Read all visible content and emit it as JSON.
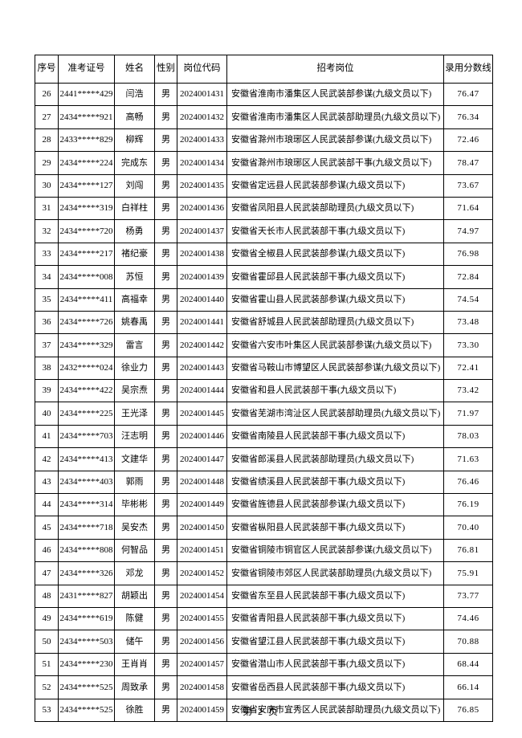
{
  "table": {
    "headers": [
      "序号",
      "准考证号",
      "姓名",
      "性别",
      "岗位代码",
      "招考岗位",
      "录用分数线"
    ],
    "rows": [
      [
        "26",
        "2441*****429",
        "闫浩",
        "男",
        "2024001431",
        "安徽省淮南市潘集区人民武装部参谋(九级文员以下)",
        "76.47"
      ],
      [
        "27",
        "2434*****921",
        "高畅",
        "男",
        "2024001432",
        "安徽省淮南市潘集区人民武装部助理员(九级文员以下)",
        "76.34"
      ],
      [
        "28",
        "2433*****829",
        "柳辉",
        "男",
        "2024001433",
        "安徽省滁州市琅琊区人民武装部参谋(九级文员以下)",
        "72.46"
      ],
      [
        "29",
        "2434*****224",
        "完成东",
        "男",
        "2024001434",
        "安徽省滁州市琅琊区人民武装部干事(九级文员以下)",
        "78.47"
      ],
      [
        "30",
        "2434*****127",
        "刘闯",
        "男",
        "2024001435",
        "安徽省定远县人民武装部参谋(九级文员以下)",
        "73.67"
      ],
      [
        "31",
        "2434*****319",
        "白祥柱",
        "男",
        "2024001436",
        "安徽省凤阳县人民武装部助理员(九级文员以下)",
        "71.64"
      ],
      [
        "32",
        "2434*****720",
        "杨勇",
        "男",
        "2024001437",
        "安徽省天长市人民武装部干事(九级文员以下)",
        "74.97"
      ],
      [
        "33",
        "2434*****217",
        "褚纪豪",
        "男",
        "2024001438",
        "安徽省全椒县人民武装部参谋(九级文员以下)",
        "76.98"
      ],
      [
        "34",
        "2434*****008",
        "苏恒",
        "男",
        "2024001439",
        "安徽省霍邱县人民武装部干事(九级文员以下)",
        "72.84"
      ],
      [
        "35",
        "2434*****411",
        "高福幸",
        "男",
        "2024001440",
        "安徽省霍山县人民武装部参谋(九级文员以下)",
        "74.54"
      ],
      [
        "36",
        "2434*****726",
        "姚春禹",
        "男",
        "2024001441",
        "安徽省舒城县人民武装部助理员(九级文员以下)",
        "73.48"
      ],
      [
        "37",
        "2434*****329",
        "雷言",
        "男",
        "2024001442",
        "安徽省六安市叶集区人民武装部参谋(九级文员以下)",
        "73.30"
      ],
      [
        "38",
        "2432*****024",
        "徐业力",
        "男",
        "2024001443",
        "安徽省马鞍山市博望区人民武装部参谋(九级文员以下)",
        "72.41"
      ],
      [
        "39",
        "2434*****422",
        "吴宗焘",
        "男",
        "2024001444",
        "安徽省和县人民武装部干事(九级文员以下)",
        "73.42"
      ],
      [
        "40",
        "2434*****225",
        "王光泽",
        "男",
        "2024001445",
        "安徽省芜湖市湾沚区人民武装部助理员(九级文员以下)",
        "71.97"
      ],
      [
        "41",
        "2434*****703",
        "汪志明",
        "男",
        "2024001446",
        "安徽省南陵县人民武装部干事(九级文员以下)",
        "78.03"
      ],
      [
        "42",
        "2434*****413",
        "文建华",
        "男",
        "2024001447",
        "安徽省郎溪县人民武装部助理员(九级文员以下)",
        "71.63"
      ],
      [
        "43",
        "2434*****403",
        "郭雨",
        "男",
        "2024001448",
        "安徽省绩溪县人民武装部干事(九级文员以下)",
        "76.46"
      ],
      [
        "44",
        "2434*****314",
        "毕彬彬",
        "男",
        "2024001449",
        "安徽省旌德县人民武装部参谋(九级文员以下)",
        "76.19"
      ],
      [
        "45",
        "2434*****718",
        "吴安杰",
        "男",
        "2024001450",
        "安徽省枞阳县人民武装部干事(九级文员以下)",
        "70.40"
      ],
      [
        "46",
        "2434*****808",
        "何智品",
        "男",
        "2024001451",
        "安徽省铜陵市铜官区人民武装部参谋(九级文员以下)",
        "76.81"
      ],
      [
        "47",
        "2434*****326",
        "邓龙",
        "男",
        "2024001452",
        "安徽省铜陵市郊区人民武装部助理员(九级文员以下)",
        "75.91"
      ],
      [
        "48",
        "2431*****827",
        "胡颖出",
        "男",
        "2024001454",
        "安徽省东至县人民武装部干事(九级文员以下)",
        "73.77"
      ],
      [
        "49",
        "2434*****619",
        "陈健",
        "男",
        "2024001455",
        "安徽省青阳县人民武装部干事(九级文员以下)",
        "74.46"
      ],
      [
        "50",
        "2434*****503",
        "储午",
        "男",
        "2024001456",
        "安徽省望江县人民武装部干事(九级文员以下)",
        "70.88"
      ],
      [
        "51",
        "2434*****230",
        "王肖肖",
        "男",
        "2024001457",
        "安徽省潜山市人民武装部干事(九级文员以下)",
        "68.44"
      ],
      [
        "52",
        "2434*****525",
        "周致承",
        "男",
        "2024001458",
        "安徽省岳西县人民武装部干事(九级文员以下)",
        "66.14"
      ],
      [
        "53",
        "2434*****525",
        "徐胜",
        "男",
        "2024001459",
        "安徽省安庆市宜秀区人民武装部助理员(九级文员以下)",
        "76.85"
      ]
    ]
  },
  "footer": {
    "page_label": "第 2 页"
  }
}
